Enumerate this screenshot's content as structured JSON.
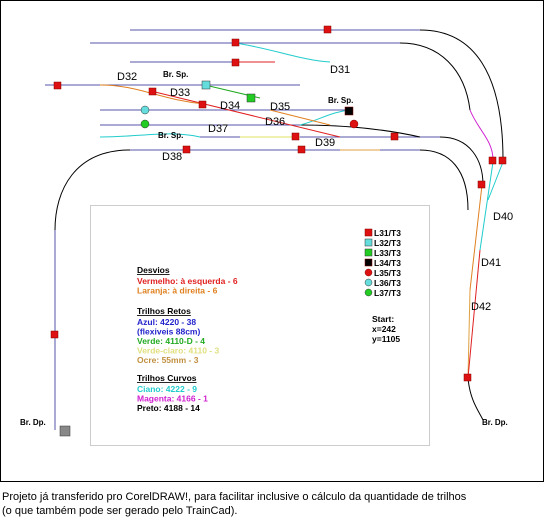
{
  "diagram": {
    "turnout_labels": [
      "D31",
      "D32",
      "D33",
      "D34",
      "D35",
      "D36",
      "D37",
      "D38",
      "D39",
      "D40",
      "D41",
      "D42"
    ],
    "branch_labels": [
      "Br. Sp.",
      "Br. Sp.",
      "Br. Sp.",
      "Br. Dp.",
      "Br. Dp."
    ]
  },
  "legend": {
    "markers": [
      "L31/T3",
      "L32/T3",
      "L33/T3",
      "L34/T3",
      "L35/T3",
      "L36/T3",
      "L37/T3"
    ],
    "desvios": {
      "title": "Desvios",
      "items": [
        "Vermelho: à esquerda - 6",
        "Laranja: à direita - 6"
      ]
    },
    "retos": {
      "title": "Trilhos Retos",
      "items": [
        "Azul: 4220 - 38",
        "(flexiveis 88cm)",
        "Verde: 4110-D - 4",
        "Verde-claro: 4110 - 3",
        "Ocre: 55mm - 3"
      ]
    },
    "curvos": {
      "title": "Trilhos Curvos",
      "items": [
        "Ciano: 4222 - 9",
        "Magenta: 4166 - 1",
        "Preto: 4188 - 14"
      ]
    },
    "start": [
      "Start:",
      "x=242",
      "y=1105"
    ]
  },
  "caption": [
    "Projeto já transferido pro CorelDRAW!, para facilitar inclusive o cálculo da quantidade de trilhos",
    "(o que também pode ser gerado pelo TrainCad)."
  ]
}
